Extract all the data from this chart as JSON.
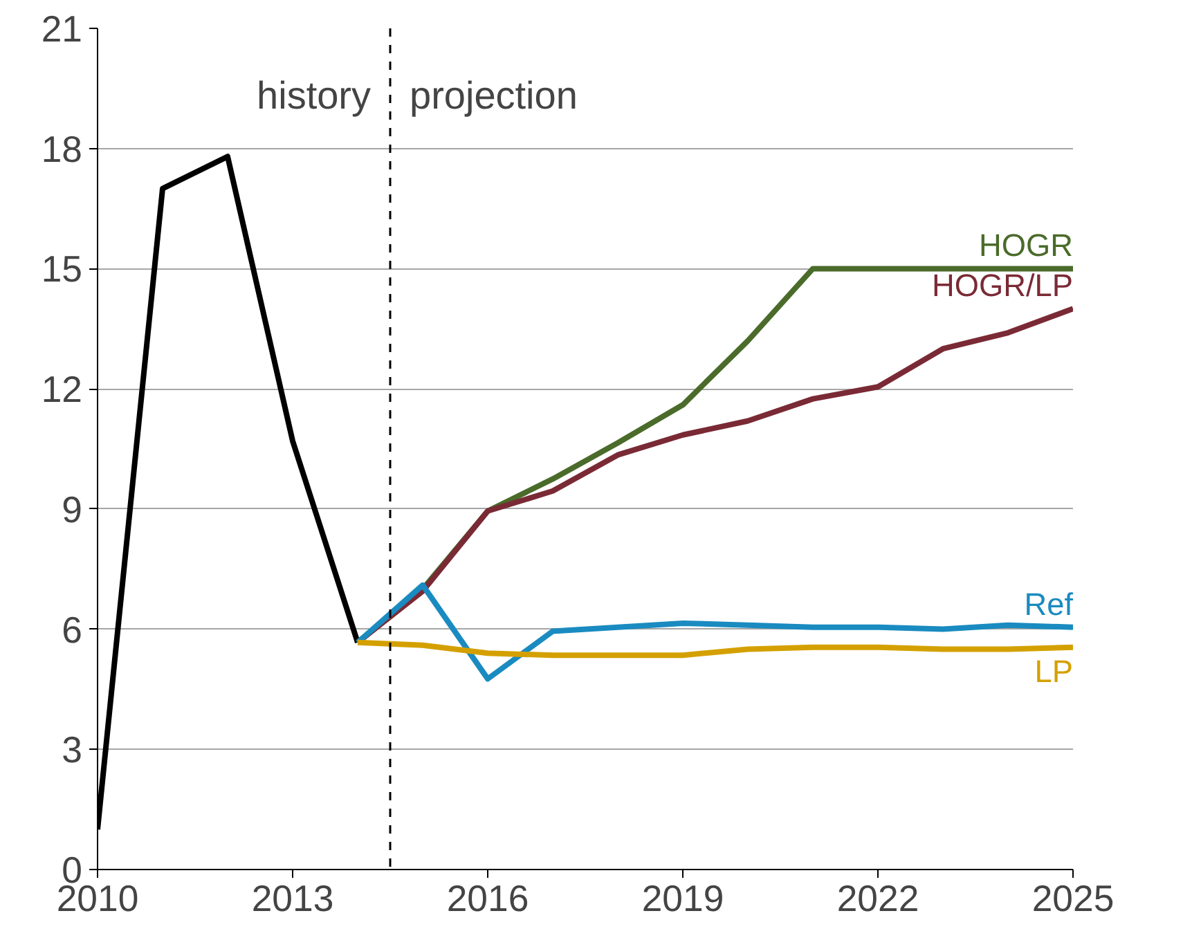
{
  "chart_data": {
    "type": "line",
    "x": [
      2010,
      2011,
      2012,
      2013,
      2014,
      2015,
      2016,
      2017,
      2018,
      2019,
      2020,
      2021,
      2022,
      2023,
      2024,
      2025
    ],
    "series": [
      {
        "color": "#000000",
        "values": [
          1.0,
          17.0,
          17.8,
          10.7,
          5.67,
          null,
          null,
          null,
          null,
          null,
          null,
          null,
          null,
          null,
          null,
          null
        ]
      },
      {
        "name": "HOGR",
        "color": "#4a6b2a",
        "values": [
          null,
          null,
          null,
          null,
          5.67,
          7.0,
          8.95,
          9.75,
          10.65,
          11.6,
          13.2,
          15.0,
          15.0,
          15.0,
          15.0,
          15.0
        ]
      },
      {
        "name": "HOGR/LP",
        "color": "#7a2a35",
        "values": [
          null,
          null,
          null,
          null,
          5.67,
          6.95,
          8.95,
          9.45,
          10.35,
          10.85,
          11.2,
          11.75,
          12.05,
          13.0,
          13.4,
          14.0
        ]
      },
      {
        "name": "Ref",
        "color": "#1a8bc0",
        "values": [
          null,
          null,
          null,
          null,
          5.67,
          7.1,
          4.76,
          5.95,
          6.05,
          6.15,
          6.1,
          6.05,
          6.05,
          6.0,
          6.1,
          6.05
        ]
      },
      {
        "name": "LP",
        "color": "#d4a000",
        "values": [
          null,
          null,
          null,
          null,
          5.67,
          5.6,
          5.4,
          5.35,
          5.35,
          5.35,
          5.5,
          5.55,
          5.55,
          5.5,
          5.5,
          5.55
        ]
      }
    ],
    "xlim": [
      2010,
      2025
    ],
    "xticks": [
      2010,
      2013,
      2016,
      2019,
      2022,
      2025
    ],
    "ylim": [
      0,
      21
    ],
    "yticks": [
      0,
      3,
      6,
      9,
      12,
      15,
      18,
      21
    ],
    "grid": "y",
    "legend": false,
    "marker": "none",
    "line_style": "solid",
    "ref_lines": [
      {
        "axis": "x",
        "value": 2014.5,
        "line_style": "dashed",
        "color": "#000000"
      }
    ],
    "annotations": [
      "history",
      "projection"
    ]
  }
}
